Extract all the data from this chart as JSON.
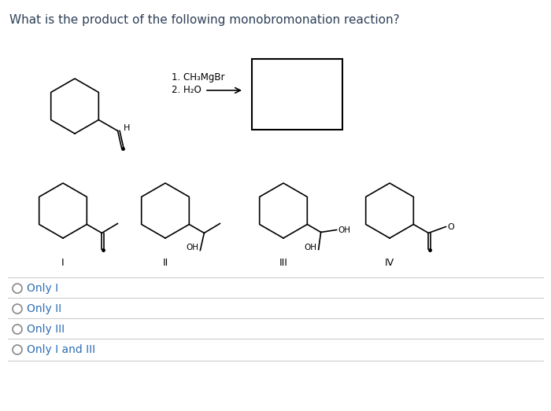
{
  "title": "What is the product of the following monobromonation reaction?",
  "title_color": "#2E4057",
  "reagent_line1": "1. CH₃MgBr",
  "reagent_line2": "2. H₂O",
  "answer_labels": [
    "I",
    "II",
    "III",
    "IV"
  ],
  "options": [
    "Only I",
    "Only II",
    "Only III",
    "Only I and III"
  ],
  "bg_color": "#ffffff",
  "text_color": "#2E4057",
  "option_text_color": "#2E6DB4"
}
